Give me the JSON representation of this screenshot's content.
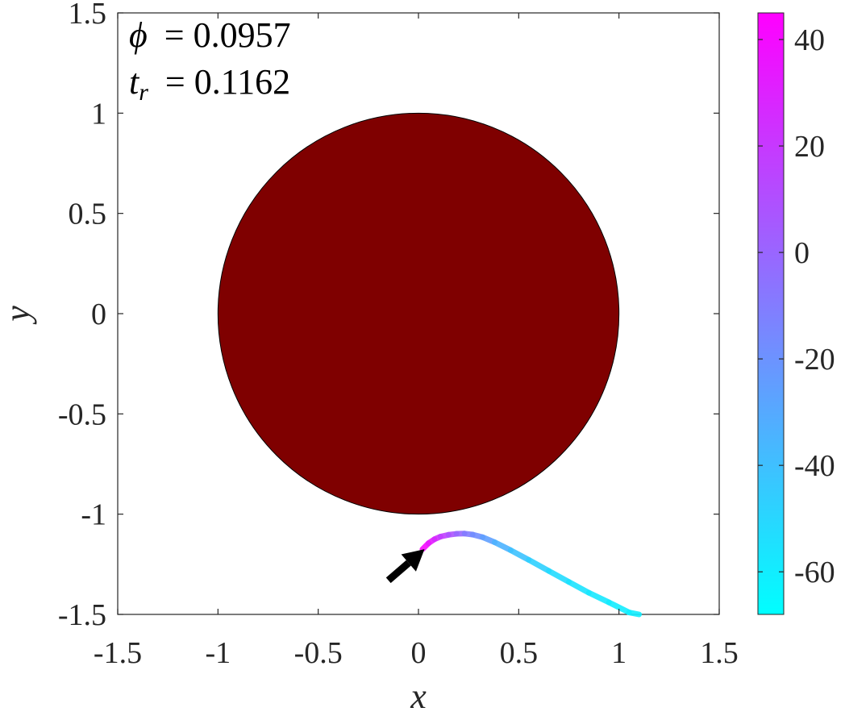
{
  "chart_data": {
    "type": "scatter",
    "xlabel": "x",
    "ylabel": "y",
    "xlim": [
      -1.5,
      1.5
    ],
    "ylim": [
      -1.5,
      1.5
    ],
    "x_ticks": [
      "-1.5",
      "-1",
      "-0.5",
      "0",
      "0.5",
      "1",
      "1.5"
    ],
    "y_ticks": [
      "-1.5",
      "-1",
      "-0.5",
      "0",
      "0.5",
      "1",
      "1.5"
    ],
    "grid": false,
    "annotations": {
      "phi": {
        "symbol": "ϕ",
        "value": "= 0.0957"
      },
      "tr": {
        "symbol": "t",
        "subscript": "r",
        "value": "= 0.1162"
      }
    },
    "disk": {
      "center": [
        0,
        0
      ],
      "radius": 1,
      "color": "#7f0000"
    },
    "trajectory": {
      "points": [
        {
          "x": 0.02,
          "y": -1.175,
          "c": 45
        },
        {
          "x": 0.05,
          "y": -1.145,
          "c": 38
        },
        {
          "x": 0.08,
          "y": -1.125,
          "c": 30
        },
        {
          "x": 0.11,
          "y": -1.112,
          "c": 22
        },
        {
          "x": 0.15,
          "y": -1.103,
          "c": 12
        },
        {
          "x": 0.19,
          "y": -1.098,
          "c": 4
        },
        {
          "x": 0.23,
          "y": -1.097,
          "c": -6
        },
        {
          "x": 0.27,
          "y": -1.102,
          "c": -14
        },
        {
          "x": 0.32,
          "y": -1.115,
          "c": -22
        },
        {
          "x": 0.38,
          "y": -1.14,
          "c": -30
        },
        {
          "x": 0.46,
          "y": -1.18,
          "c": -38
        },
        {
          "x": 0.55,
          "y": -1.228,
          "c": -44
        },
        {
          "x": 0.65,
          "y": -1.283,
          "c": -50
        },
        {
          "x": 0.75,
          "y": -1.338,
          "c": -54
        },
        {
          "x": 0.85,
          "y": -1.392,
          "c": -57
        },
        {
          "x": 0.95,
          "y": -1.44,
          "c": -59
        },
        {
          "x": 1.05,
          "y": -1.49,
          "c": -60
        },
        {
          "x": 1.1,
          "y": -1.5,
          "c": -60
        }
      ]
    },
    "arrow": {
      "from": [
        -0.15,
        -1.33
      ],
      "to": [
        0.03,
        -1.175
      ],
      "color": "#000000"
    },
    "colorbar": {
      "min": -68,
      "max": 45,
      "ticks": [
        40,
        20,
        0,
        -20,
        -40,
        -60
      ],
      "tick_labels": [
        "40",
        "20",
        "0",
        "-20",
        "-40",
        "-60"
      ],
      "colors": [
        "#00ffff",
        "#ff00ff"
      ]
    }
  }
}
